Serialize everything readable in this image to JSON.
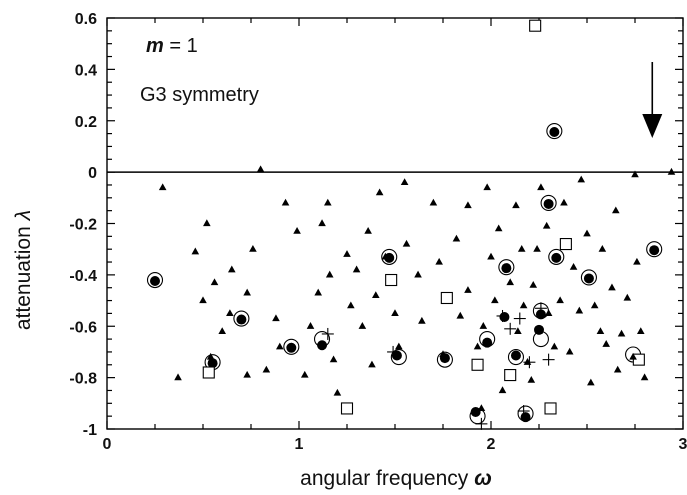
{
  "chart_data": {
    "type": "scatter",
    "xlabel": "angular frequency",
    "xlabel_symbol": "ω",
    "ylabel": "attenuation",
    "ylabel_symbol": "λ",
    "xlim": [
      0,
      3
    ],
    "ylim": [
      -1,
      0.6
    ],
    "x_ticks": [
      0,
      1,
      2,
      3
    ],
    "x_tick_labels": [
      "0",
      "1",
      "2",
      "3"
    ],
    "y_ticks": [
      -1,
      -0.8,
      -0.6,
      -0.4,
      -0.2,
      0,
      0.2,
      0.4,
      0.6
    ],
    "y_tick_labels": [
      "-1",
      "-0.8",
      "-0.6",
      "-0.4",
      "-0.2",
      "0",
      "0.2",
      "0.4",
      "0.6"
    ],
    "zero_line": true,
    "grid": false,
    "annotations": {
      "m_symbol": "m",
      "m_value": " = 1",
      "symmetry": "G3 symmetry"
    },
    "arrow_x": 2.84,
    "series": [
      {
        "marker": "triangle",
        "points": [
          [
            0.25,
            -0.42
          ],
          [
            0.29,
            -0.06
          ],
          [
            0.37,
            -0.8
          ],
          [
            0.46,
            -0.31
          ],
          [
            0.5,
            -0.5
          ],
          [
            0.52,
            -0.2
          ],
          [
            0.54,
            -0.72
          ],
          [
            0.56,
            -0.43
          ],
          [
            0.6,
            -0.62
          ],
          [
            0.64,
            -0.55
          ],
          [
            0.65,
            -0.38
          ],
          [
            0.7,
            -0.57
          ],
          [
            0.73,
            -0.47
          ],
          [
            0.73,
            -0.79
          ],
          [
            0.76,
            -0.3
          ],
          [
            0.8,
            0.01
          ],
          [
            0.83,
            -0.77
          ],
          [
            0.88,
            -0.57
          ],
          [
            0.9,
            -0.68
          ],
          [
            0.93,
            -0.12
          ],
          [
            0.96,
            -0.68
          ],
          [
            0.99,
            -0.23
          ],
          [
            1.03,
            -0.79
          ],
          [
            1.06,
            -0.6
          ],
          [
            1.1,
            -0.47
          ],
          [
            1.12,
            -0.2
          ],
          [
            1.15,
            -0.12
          ],
          [
            1.16,
            -0.4
          ],
          [
            1.18,
            -0.73
          ],
          [
            1.2,
            -0.86
          ],
          [
            1.25,
            -0.32
          ],
          [
            1.27,
            -0.52
          ],
          [
            1.3,
            -0.38
          ],
          [
            1.33,
            -0.6
          ],
          [
            1.36,
            -0.23
          ],
          [
            1.38,
            -0.75
          ],
          [
            1.4,
            -0.48
          ],
          [
            1.42,
            -0.08
          ],
          [
            1.45,
            -0.33
          ],
          [
            1.5,
            -0.55
          ],
          [
            1.52,
            -0.68
          ],
          [
            1.55,
            -0.04
          ],
          [
            1.56,
            -0.28
          ],
          [
            1.62,
            -0.4
          ],
          [
            1.64,
            -0.58
          ],
          [
            1.7,
            -0.12
          ],
          [
            1.73,
            -0.35
          ],
          [
            1.75,
            -0.71
          ],
          [
            1.82,
            -0.26
          ],
          [
            1.84,
            -0.56
          ],
          [
            1.88,
            -0.13
          ],
          [
            1.88,
            -0.46
          ],
          [
            1.93,
            -0.68
          ],
          [
            1.95,
            -0.92
          ],
          [
            1.96,
            -0.6
          ],
          [
            1.98,
            -0.06
          ],
          [
            2.0,
            -0.33
          ],
          [
            2.02,
            -0.5
          ],
          [
            2.04,
            -0.22
          ],
          [
            2.06,
            -0.85
          ],
          [
            2.1,
            -0.43
          ],
          [
            2.13,
            -0.13
          ],
          [
            2.14,
            -0.62
          ],
          [
            2.16,
            -0.3
          ],
          [
            2.17,
            -0.52
          ],
          [
            2.19,
            -0.74
          ],
          [
            2.21,
            -0.81
          ],
          [
            2.22,
            -0.44
          ],
          [
            2.24,
            -0.3
          ],
          [
            2.25,
            -0.62
          ],
          [
            2.26,
            -0.06
          ],
          [
            2.29,
            -0.21
          ],
          [
            2.3,
            -0.55
          ],
          [
            2.33,
            -0.68
          ],
          [
            2.36,
            -0.5
          ],
          [
            2.38,
            -0.12
          ],
          [
            2.41,
            -0.7
          ],
          [
            2.43,
            -0.37
          ],
          [
            2.46,
            -0.54
          ],
          [
            2.47,
            -0.03
          ],
          [
            2.5,
            -0.24
          ],
          [
            2.52,
            -0.82
          ],
          [
            2.54,
            -0.52
          ],
          [
            2.57,
            -0.62
          ],
          [
            2.58,
            -0.3
          ],
          [
            2.6,
            -0.67
          ],
          [
            2.63,
            -0.45
          ],
          [
            2.65,
            -0.15
          ],
          [
            2.66,
            -0.77
          ],
          [
            2.68,
            -0.63
          ],
          [
            2.71,
            -0.49
          ],
          [
            2.74,
            -0.72
          ],
          [
            2.75,
            -0.01
          ],
          [
            2.76,
            -0.35
          ],
          [
            2.78,
            -0.62
          ],
          [
            2.8,
            -0.8
          ],
          [
            2.94,
            0.0
          ]
        ]
      },
      {
        "marker": "open-circle",
        "points": [
          [
            0.25,
            -0.42
          ],
          [
            0.55,
            -0.74
          ],
          [
            0.7,
            -0.57
          ],
          [
            0.96,
            -0.68
          ],
          [
            1.12,
            -0.65
          ],
          [
            1.47,
            -0.33
          ],
          [
            1.52,
            -0.72
          ],
          [
            1.76,
            -0.73
          ],
          [
            1.98,
            -0.65
          ],
          [
            1.93,
            -0.95
          ],
          [
            2.08,
            -0.37
          ],
          [
            2.13,
            -0.72
          ],
          [
            2.18,
            -0.94
          ],
          [
            2.26,
            -0.65
          ],
          [
            2.26,
            -0.54
          ],
          [
            2.3,
            -0.12
          ],
          [
            2.33,
            0.16
          ],
          [
            2.34,
            -0.33
          ],
          [
            2.51,
            -0.41
          ],
          [
            2.74,
            -0.71
          ],
          [
            2.85,
            -0.3
          ]
        ]
      },
      {
        "marker": "filled-circle",
        "points": [
          [
            0.25,
            -0.42
          ],
          [
            0.55,
            -0.74
          ],
          [
            0.7,
            -0.57
          ],
          [
            0.96,
            -0.68
          ],
          [
            1.12,
            -0.67
          ],
          [
            1.47,
            -0.33
          ],
          [
            1.51,
            -0.71
          ],
          [
            1.76,
            -0.72
          ],
          [
            1.98,
            -0.66
          ],
          [
            1.92,
            -0.93
          ],
          [
            2.07,
            -0.56
          ],
          [
            2.08,
            -0.37
          ],
          [
            2.13,
            -0.71
          ],
          [
            2.18,
            -0.95
          ],
          [
            2.25,
            -0.61
          ],
          [
            2.26,
            -0.55
          ],
          [
            2.3,
            -0.12
          ],
          [
            2.33,
            0.16
          ],
          [
            2.34,
            -0.33
          ],
          [
            2.51,
            -0.41
          ],
          [
            2.85,
            -0.3
          ]
        ]
      },
      {
        "marker": "plus",
        "points": [
          [
            1.15,
            -0.63
          ],
          [
            1.49,
            -0.7
          ],
          [
            1.95,
            -0.98
          ],
          [
            2.06,
            -0.56
          ],
          [
            2.1,
            -0.61
          ],
          [
            2.15,
            -0.57
          ],
          [
            2.2,
            -0.74
          ],
          [
            2.26,
            -0.53
          ],
          [
            2.3,
            -0.73
          ],
          [
            2.17,
            -0.93
          ]
        ]
      },
      {
        "marker": "open-square",
        "points": [
          [
            0.53,
            -0.78
          ],
          [
            1.25,
            -0.92
          ],
          [
            1.48,
            -0.42
          ],
          [
            1.77,
            -0.49
          ],
          [
            1.93,
            -0.75
          ],
          [
            2.1,
            -0.79
          ],
          [
            2.23,
            0.57
          ],
          [
            2.31,
            -0.92
          ],
          [
            2.39,
            -0.28
          ],
          [
            2.77,
            -0.73
          ]
        ]
      }
    ]
  }
}
